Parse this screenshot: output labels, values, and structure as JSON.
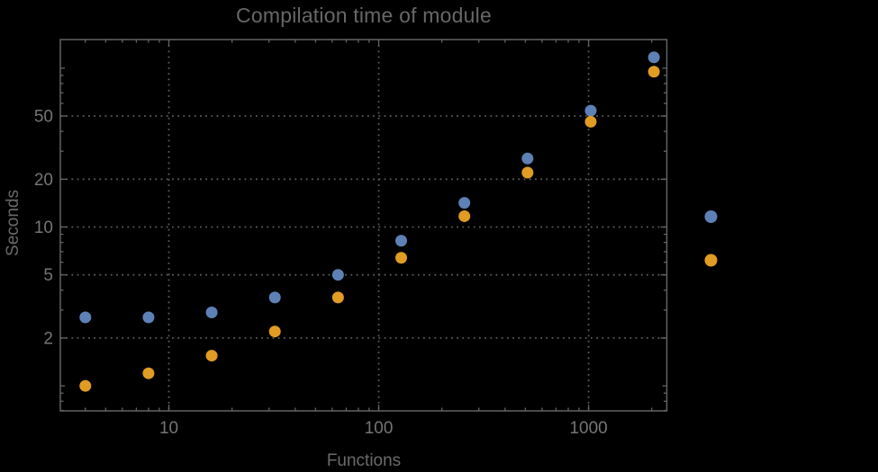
{
  "chart_data": {
    "type": "scatter",
    "title": "Compilation time of module",
    "xlabel": "Functions",
    "ylabel": "Seconds",
    "xscale": "log",
    "yscale": "log",
    "xlim": [
      3.04,
      2360
    ],
    "ylim": [
      0.696,
      151.4
    ],
    "x_major_ticks": [
      10,
      100,
      1000
    ],
    "x_tick_labels": [
      "10",
      "100",
      "1000"
    ],
    "y_major_ticks": [
      2,
      5,
      10,
      20,
      50
    ],
    "y_tick_labels": [
      "2",
      "5",
      "10",
      "20",
      "50"
    ],
    "y_medium_ticks": [
      1,
      100
    ],
    "grid": {
      "x_values": [
        10,
        100,
        1000
      ],
      "y_values": [
        2,
        5,
        10,
        20,
        50
      ],
      "style": "dotted",
      "color": "#5a5a5a"
    },
    "legend_position": "right-outside",
    "series": [
      {
        "name": "blue",
        "color": "#5E81B5",
        "x": [
          4,
          8,
          16,
          32,
          64,
          128,
          256,
          512,
          1024,
          2048
        ],
        "y": [
          2.7,
          2.7,
          2.9,
          3.6,
          5.0,
          8.2,
          14.2,
          27,
          54,
          117
        ]
      },
      {
        "name": "orange",
        "color": "#E19C24",
        "x": [
          4,
          8,
          16,
          32,
          64,
          128,
          256,
          512,
          1024,
          2048
        ],
        "y": [
          1.0,
          1.2,
          1.55,
          2.2,
          3.6,
          6.4,
          11.7,
          22,
          46,
          95
        ]
      }
    ]
  },
  "colors": {
    "background": "#000000",
    "frame": "#636363",
    "tick_label": "#757575",
    "title_text": "#676767",
    "axis_label_text": "#6a6a6a",
    "gridline": "#5a5a5a",
    "series_blue": "#5E81B5",
    "series_orange": "#E19C24"
  }
}
